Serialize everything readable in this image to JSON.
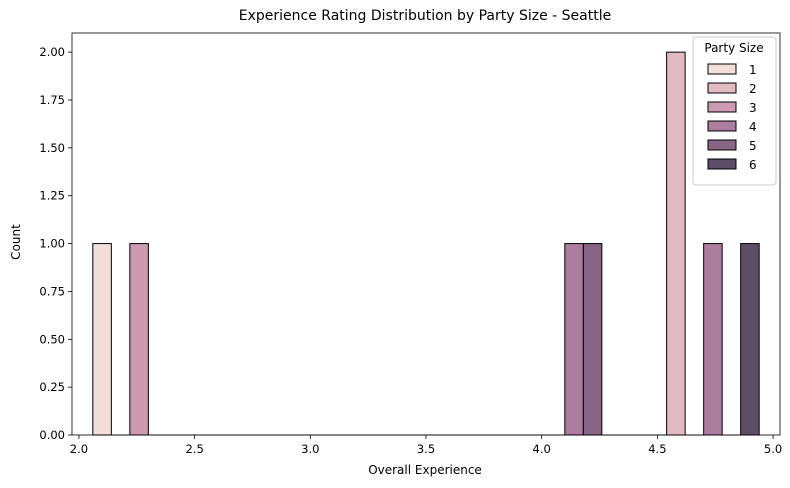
{
  "chart_data": {
    "type": "bar",
    "title": "Experience Rating Distribution by Party Size - Seattle",
    "xlabel": "Overall Experience",
    "ylabel": "Count",
    "xlim": [
      1.97,
      5.03
    ],
    "ylim": [
      0,
      2.1
    ],
    "x_ticks": [
      "2.0",
      "2.5",
      "3.0",
      "3.5",
      "4.0",
      "4.5",
      "5.0"
    ],
    "y_ticks": [
      "0.00",
      "0.25",
      "0.50",
      "0.75",
      "1.00",
      "1.25",
      "1.50",
      "1.75",
      "2.00"
    ],
    "bin_width": 0.08,
    "legend": {
      "title": "Party Size",
      "placement": "top-right",
      "entries": [
        "1",
        "2",
        "3",
        "4",
        "5",
        "6"
      ]
    },
    "series_colors": {
      "1": "#f2dfd9",
      "2": "#e2bac2",
      "3": "#cc9bb1",
      "4": "#ad7d9f",
      "5": "#886487",
      "6": "#5d4d66"
    },
    "bars": [
      {
        "party_size": "1",
        "x_start": 2.06,
        "x_end": 2.14,
        "count": 1
      },
      {
        "party_size": "3",
        "x_start": 2.22,
        "x_end": 2.3,
        "count": 1
      },
      {
        "party_size": "4",
        "x_start": 4.1,
        "x_end": 4.18,
        "count": 1
      },
      {
        "party_size": "5",
        "x_start": 4.18,
        "x_end": 4.26,
        "count": 1
      },
      {
        "party_size": "2",
        "x_start": 4.54,
        "x_end": 4.62,
        "count": 2
      },
      {
        "party_size": "4",
        "x_start": 4.7,
        "x_end": 4.78,
        "count": 1
      },
      {
        "party_size": "6",
        "x_start": 4.86,
        "x_end": 4.94,
        "count": 1
      }
    ],
    "grid": false
  }
}
